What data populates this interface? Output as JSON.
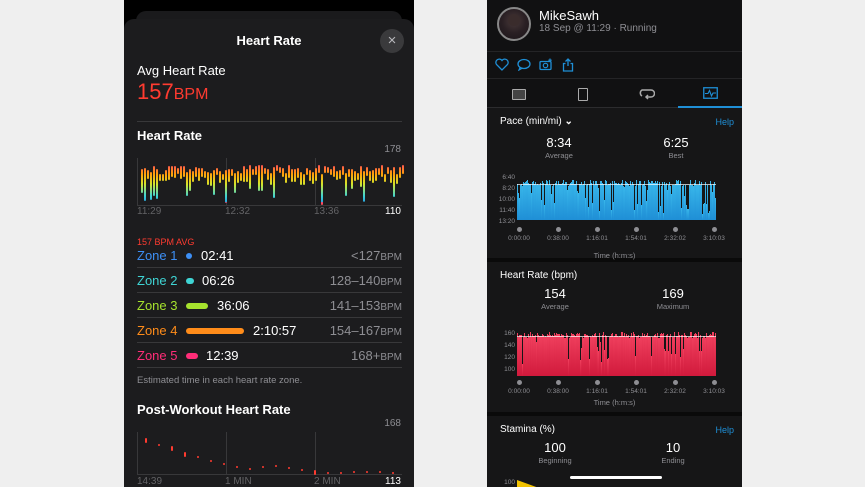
{
  "left_app": {
    "sheet_title": "Heart Rate",
    "close_icon": "×",
    "avg": {
      "label": "Avg Heart Rate",
      "value": "157",
      "unit": "BPM"
    },
    "heart_rate_section": {
      "title": "Heart Rate",
      "y_max": "178",
      "y_min": "110",
      "times": [
        "11:29",
        "12:32",
        "13:36"
      ],
      "avg_text": "157 BPM AVG"
    },
    "zones": [
      {
        "name": "Zone 1",
        "time": "02:41",
        "range": "<127",
        "unit": "BPM",
        "color": "#3d8ff5"
      },
      {
        "name": "Zone 2",
        "time": "06:26",
        "range": "128–140",
        "unit": "BPM",
        "color": "#3fd4d4"
      },
      {
        "name": "Zone 3",
        "time": "36:06",
        "range": "141–153",
        "unit": "BPM",
        "color": "#a6e22e"
      },
      {
        "name": "Zone 4",
        "time": "2:10:57",
        "range": "154–167",
        "unit": "BPM",
        "color": "#ff8c1a"
      },
      {
        "name": "Zone 5",
        "time": "12:39",
        "range": "168+",
        "unit": "BPM",
        "color": "#ff2d78"
      }
    ],
    "zone_note": "Estimated time in each heart rate zone.",
    "post_workout": {
      "title": "Post-Workout Heart Rate",
      "y_max": "168",
      "y_min": "113",
      "times": [
        "14:39",
        "1 MIN",
        "2 MIN"
      ]
    }
  },
  "right_app": {
    "user": {
      "name": "MikeSawh",
      "subtitle": "18 Sep @ 11:29 · Running"
    },
    "actions": [
      "heart-icon",
      "comment-icon",
      "camera-icon",
      "share-icon"
    ],
    "tabs": [
      "summary-tab",
      "details-tab",
      "laps-tab",
      "charts-tab"
    ],
    "active_tab": 3,
    "pace": {
      "title": "Pace (min/mi)",
      "dropdown_icon": "⌄",
      "help": "Help",
      "average": {
        "value": "8:34",
        "label": "Average"
      },
      "best": {
        "value": "6:25",
        "label": "Best"
      },
      "y_ticks": [
        "6:40",
        "8:20",
        "10:00",
        "11:40",
        "13:20"
      ],
      "x_ticks": [
        "0:00:00",
        "0:38:00",
        "1:16:01",
        "1:54:01",
        "2:32:02",
        "3:10:03"
      ],
      "x_label": "Time (h:m:s)",
      "color": "#2aa7e0"
    },
    "heart_rate": {
      "title": "Heart Rate (bpm)",
      "average": {
        "value": "154",
        "label": "Average"
      },
      "maximum": {
        "value": "169",
        "label": "Maximum"
      },
      "y_ticks": [
        "160",
        "140",
        "120",
        "100"
      ],
      "x_ticks": [
        "0:00:00",
        "0:38:00",
        "1:16:01",
        "1:54:01",
        "2:32:02",
        "3:10:03"
      ],
      "x_label": "Time (h:m:s)",
      "color": "#e8264c"
    },
    "stamina": {
      "title": "Stamina (%)",
      "help": "Help",
      "beginning": {
        "value": "100",
        "label": "Beginning"
      },
      "ending": {
        "value": "10",
        "label": "Ending"
      },
      "y_tick_top": "100"
    }
  }
}
